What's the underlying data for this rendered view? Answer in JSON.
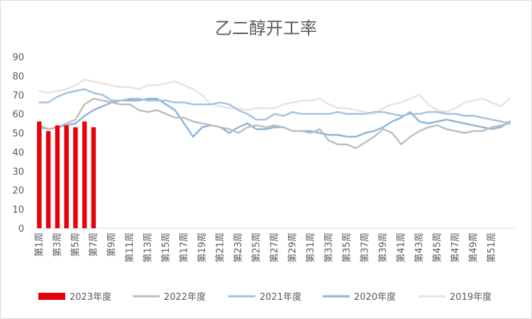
{
  "chart_data": {
    "type": "bar+line",
    "title": "乙二醇开工率",
    "xlabel": "",
    "ylabel": "",
    "ylim": [
      0,
      90
    ],
    "yticks": [
      0,
      10,
      20,
      30,
      40,
      50,
      60,
      70,
      80,
      90
    ],
    "grid": false,
    "legend_position": "bottom",
    "x_tick_labels": [
      "第1周",
      "第3周",
      "第5周",
      "第7周",
      "第9周",
      "第11周",
      "第13周",
      "第15周",
      "第17周",
      "第19周",
      "第21周",
      "第23周",
      "第25周",
      "第27周",
      "第29周",
      "第31周",
      "第33周",
      "第35周",
      "第37周",
      "第39周",
      "第41周",
      "第43周",
      "第45周",
      "第47周",
      "第49周",
      "第51周"
    ],
    "series": [
      {
        "name": "2023年度",
        "type": "bar",
        "color": "#e8000b",
        "values": [
          56,
          51,
          54,
          54,
          53,
          56,
          53
        ]
      },
      {
        "name": "2022年度",
        "type": "line",
        "color": "#bfbfbf",
        "values": [
          54,
          52,
          53,
          55,
          57,
          65,
          68,
          67,
          66,
          65,
          65,
          62,
          61,
          62,
          60,
          58,
          58,
          56,
          55,
          54,
          53,
          52,
          50,
          53,
          54,
          53,
          54,
          53,
          51,
          51,
          50,
          52,
          46,
          44,
          44,
          42,
          45,
          48,
          52,
          50,
          44,
          48,
          51,
          53,
          54,
          52,
          51,
          50,
          51,
          51,
          53,
          54,
          55
        ]
      },
      {
        "name": "2021年度",
        "type": "line",
        "color": "#a6c2e0",
        "values": [
          66,
          66,
          69,
          71,
          72,
          73,
          71,
          70,
          67,
          67,
          68,
          68,
          67,
          67,
          67,
          66,
          66,
          65,
          65,
          65,
          66,
          65,
          62,
          60,
          57,
          57,
          60,
          59,
          61,
          60,
          60,
          60,
          60,
          61,
          60,
          60,
          60,
          61,
          61,
          60,
          59,
          60,
          60,
          61,
          61,
          60,
          60,
          59,
          59,
          58,
          57,
          56,
          55
        ]
      },
      {
        "name": "2020年度",
        "type": "line",
        "color": "#8eb4dc",
        "values": [
          53,
          52,
          53,
          54,
          55,
          59,
          62,
          64,
          66,
          67,
          67,
          67,
          68,
          68,
          65,
          62,
          55,
          48,
          53,
          54,
          53,
          50,
          53,
          55,
          52,
          52,
          53,
          53,
          51,
          51,
          51,
          50,
          49,
          49,
          48,
          48,
          50,
          51,
          53,
          56,
          58,
          61,
          56,
          55,
          56,
          57,
          56,
          55,
          54,
          53,
          52,
          53,
          56
        ]
      },
      {
        "name": "2019年度",
        "type": "line",
        "color": "#e4e4e4",
        "values": [
          72,
          71,
          72,
          73,
          75,
          78,
          77,
          76,
          75,
          74,
          74,
          73,
          75,
          75,
          76,
          77,
          75,
          73,
          70,
          65,
          64,
          63,
          63,
          62,
          63,
          63,
          63,
          65,
          66,
          67,
          67,
          68,
          65,
          63,
          63,
          62,
          61,
          60,
          63,
          65,
          66,
          68,
          70,
          65,
          62,
          61,
          63,
          66,
          67,
          68,
          66,
          64,
          68
        ]
      }
    ],
    "legend_order": [
      "2023年度",
      "2022年度",
      "2021年度",
      "2020年度",
      "2019年度"
    ]
  }
}
